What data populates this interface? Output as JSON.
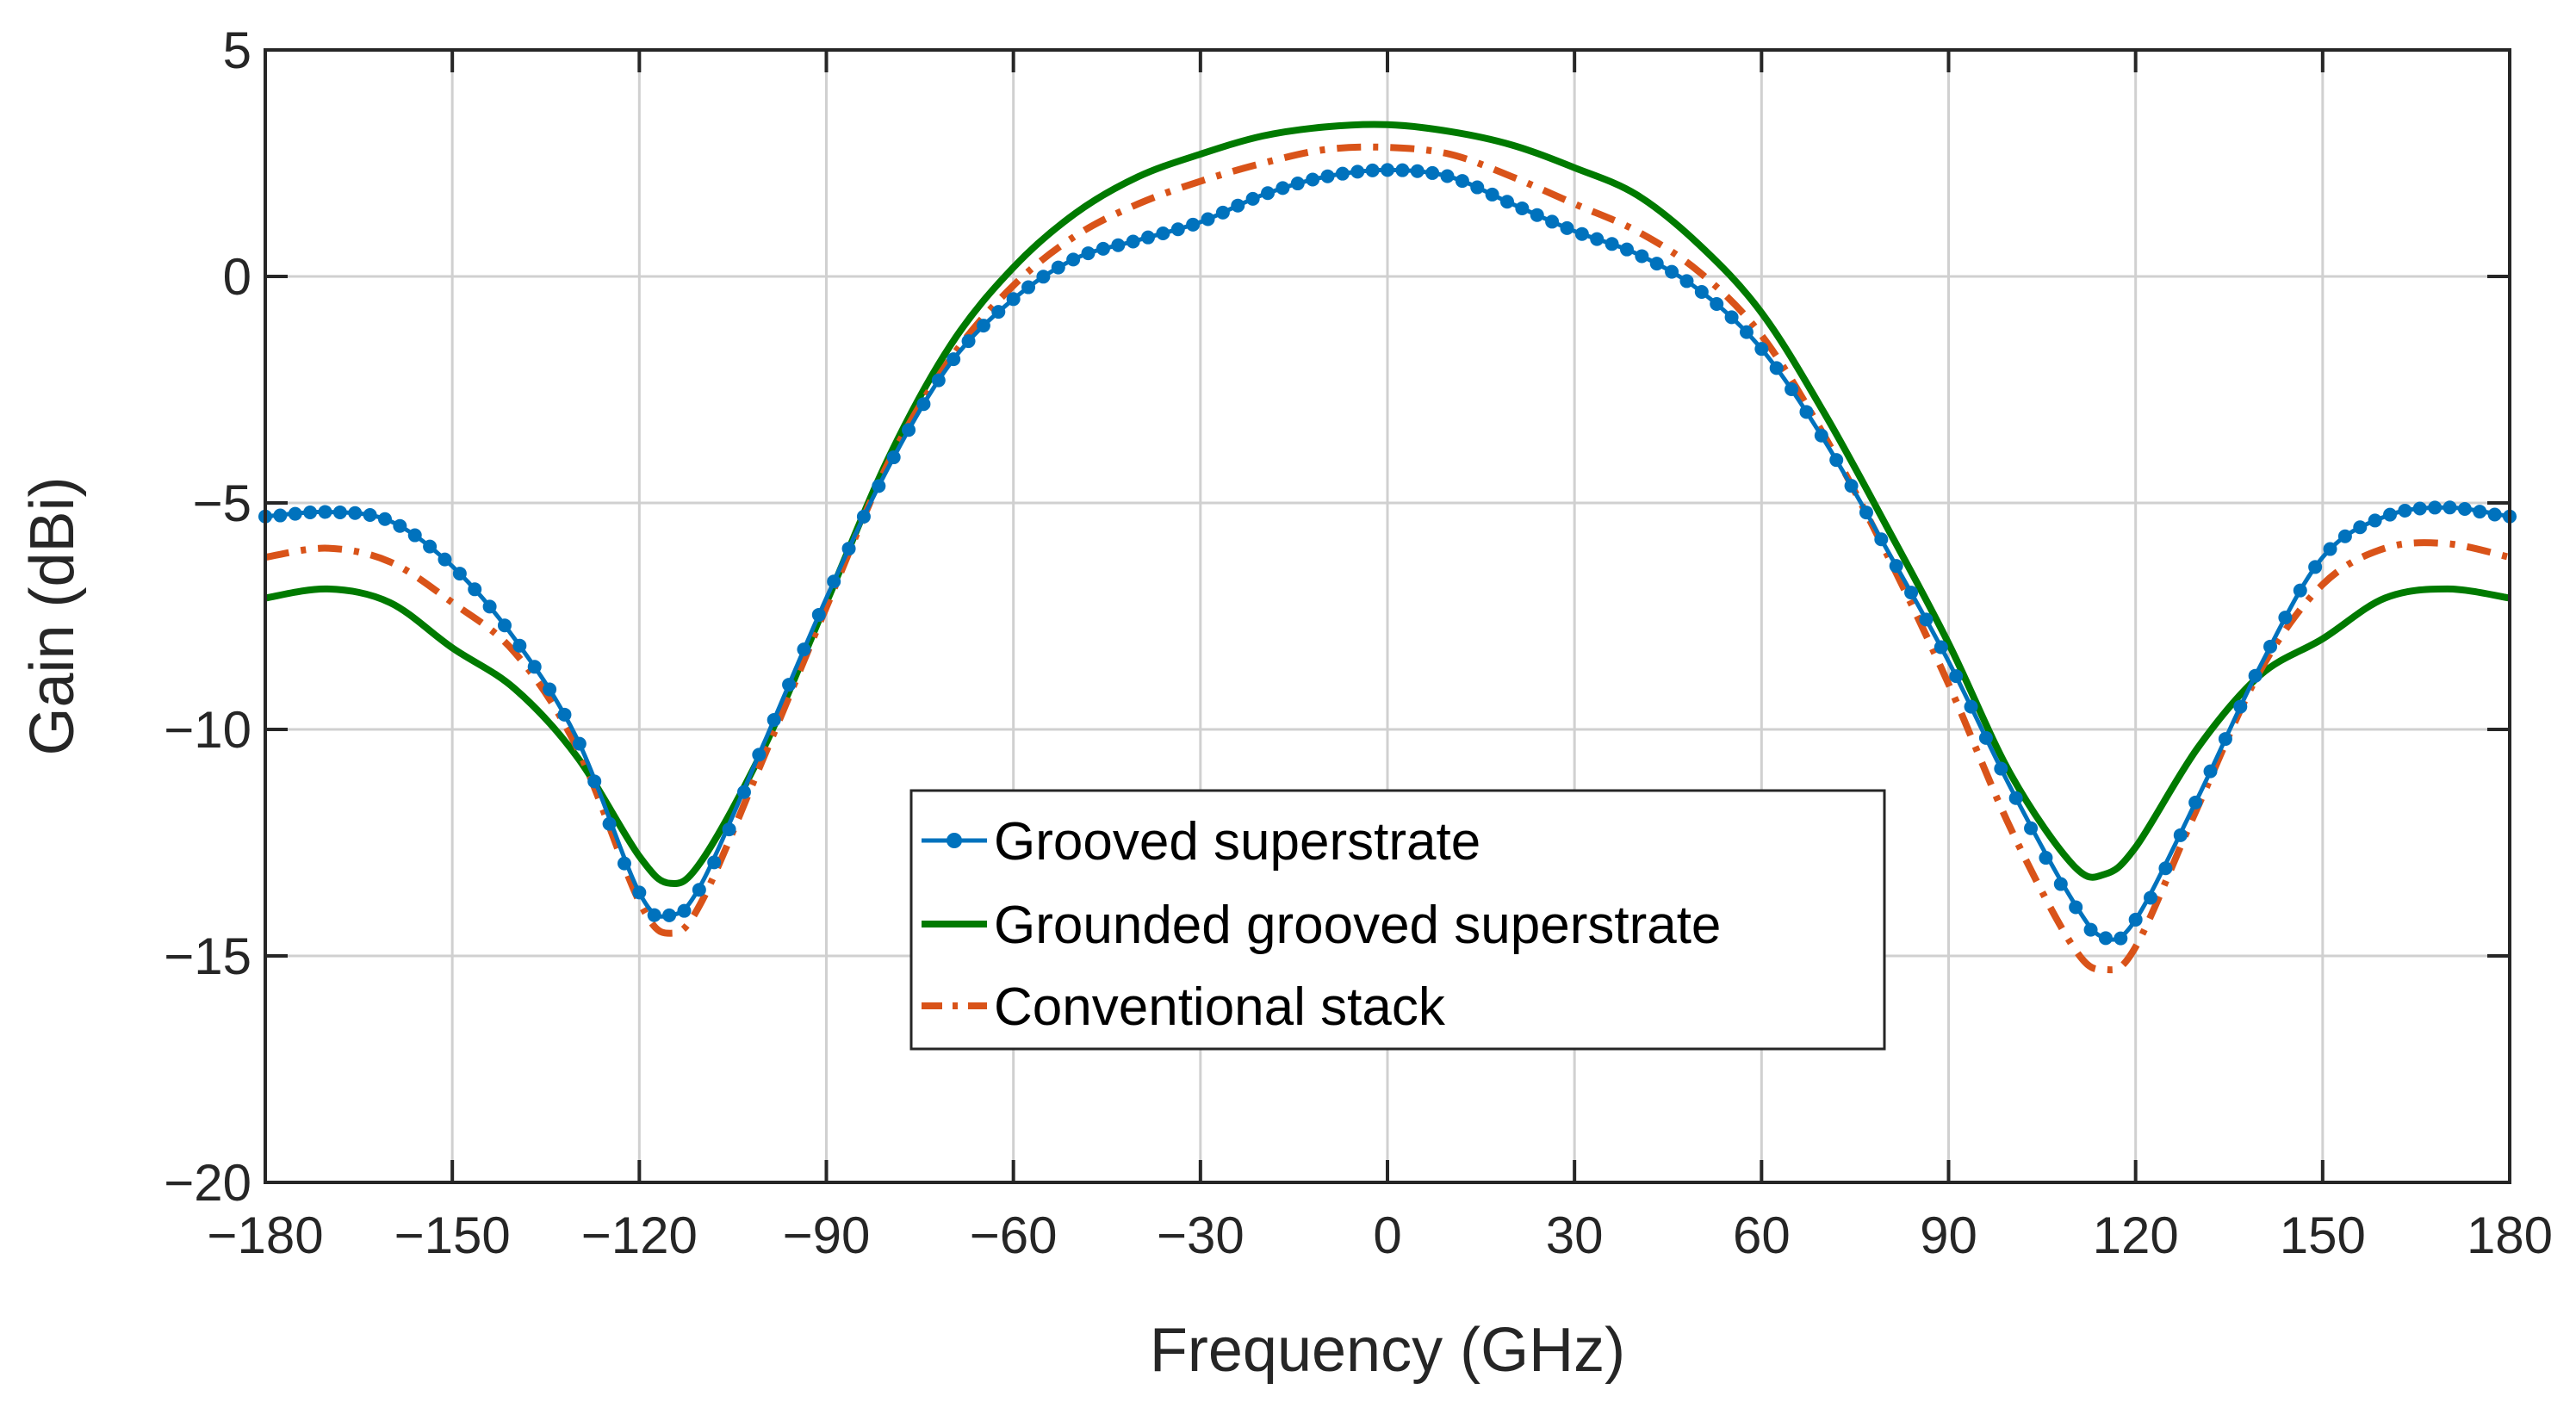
{
  "chart_data": {
    "type": "line",
    "title": "",
    "xlabel": "Frequency (GHz)",
    "ylabel": "Gain (dBi)",
    "xlim": [
      -180,
      180
    ],
    "ylim": [
      -20,
      5
    ],
    "grid": true,
    "legend_position": "center",
    "xticks": [
      -180,
      -150,
      -120,
      -90,
      -60,
      -30,
      0,
      30,
      60,
      90,
      120,
      150,
      180
    ],
    "xtick_labels": [
      "−180",
      "−150",
      "−120",
      "−90",
      "−60",
      "−30",
      "0",
      "30",
      "60",
      "90",
      "120",
      "150",
      "180"
    ],
    "yticks": [
      -20,
      -15,
      -10,
      -5,
      0,
      5
    ],
    "ytick_labels": [
      "−20",
      "−15",
      "−10",
      "−5",
      "0",
      "5"
    ],
    "series": [
      {
        "name": "Grooved superstrate",
        "color": "#0072BD",
        "style": "solid-markers",
        "x": [
          -180,
          -170,
          -160,
          -150,
          -140,
          -130,
          -120,
          -115,
          -110,
          -100,
          -90,
          -80,
          -70,
          -60,
          -50,
          -40,
          -30,
          -20,
          -10,
          0,
          10,
          20,
          30,
          40,
          50,
          60,
          70,
          80,
          90,
          100,
          110,
          115,
          120,
          130,
          140,
          150,
          160,
          170,
          180
        ],
        "y": [
          -5.3,
          -5.2,
          -5.4,
          -6.4,
          -8.0,
          -10.2,
          -13.6,
          -14.1,
          -13.4,
          -10.3,
          -7.1,
          -4.2,
          -1.9,
          -0.5,
          0.4,
          0.8,
          1.2,
          1.8,
          2.2,
          2.35,
          2.2,
          1.6,
          1.0,
          0.5,
          -0.3,
          -1.6,
          -3.6,
          -6.0,
          -8.5,
          -11.3,
          -13.8,
          -14.6,
          -14.2,
          -11.5,
          -8.6,
          -6.2,
          -5.3,
          -5.1,
          -5.3
        ]
      },
      {
        "name": "Grounded grooved superstrate",
        "color": "#007A00",
        "style": "solid",
        "x": [
          -180,
          -170,
          -160,
          -150,
          -140,
          -130,
          -120,
          -115,
          -110,
          -100,
          -90,
          -80,
          -70,
          -60,
          -50,
          -40,
          -30,
          -20,
          -10,
          0,
          10,
          20,
          30,
          40,
          50,
          60,
          70,
          80,
          90,
          100,
          110,
          115,
          120,
          130,
          140,
          150,
          160,
          170,
          180
        ],
        "y": [
          -7.1,
          -6.9,
          -7.2,
          -8.2,
          -9.1,
          -10.6,
          -12.8,
          -13.4,
          -12.9,
          -10.4,
          -7.2,
          -4.0,
          -1.5,
          0.2,
          1.4,
          2.2,
          2.7,
          3.1,
          3.3,
          3.35,
          3.2,
          2.9,
          2.4,
          1.8,
          0.7,
          -0.8,
          -3.0,
          -5.5,
          -8.1,
          -11.0,
          -13.0,
          -13.2,
          -12.6,
          -10.4,
          -8.8,
          -8.0,
          -7.1,
          -6.9,
          -7.1
        ]
      },
      {
        "name": "Conventional stack",
        "color": "#D95319",
        "style": "dashdot",
        "x": [
          -180,
          -170,
          -160,
          -150,
          -140,
          -130,
          -120,
          -115,
          -110,
          -100,
          -90,
          -80,
          -70,
          -60,
          -50,
          -40,
          -30,
          -20,
          -10,
          0,
          10,
          20,
          30,
          40,
          50,
          60,
          70,
          80,
          90,
          100,
          110,
          115,
          120,
          130,
          140,
          150,
          160,
          170,
          180
        ],
        "y": [
          -6.2,
          -6.0,
          -6.3,
          -7.2,
          -8.3,
          -10.4,
          -13.8,
          -14.5,
          -13.8,
          -10.6,
          -7.3,
          -4.1,
          -1.8,
          -0.2,
          0.9,
          1.6,
          2.1,
          2.5,
          2.8,
          2.85,
          2.7,
          2.2,
          1.6,
          1.0,
          0.1,
          -1.3,
          -3.5,
          -6.1,
          -9.0,
          -12.2,
          -14.8,
          -15.3,
          -14.8,
          -11.7,
          -8.7,
          -6.8,
          -6.0,
          -5.9,
          -6.2
        ]
      }
    ]
  }
}
